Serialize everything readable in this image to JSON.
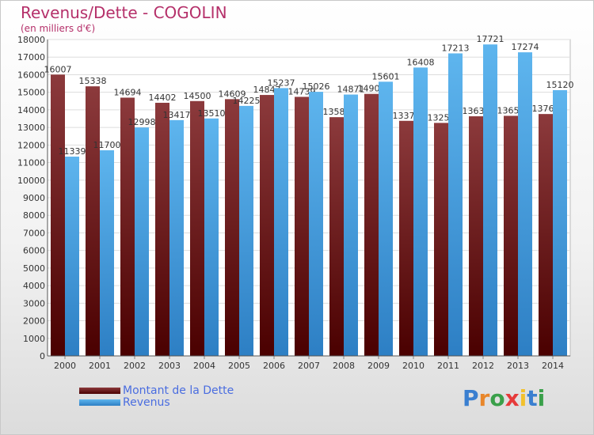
{
  "header": {
    "title": "Revenus/Dette - COGOLIN",
    "subtitle": "(en milliers d'€)"
  },
  "legend": {
    "dette_label": "Montant de la Dette",
    "revenus_label": "Revenus"
  },
  "logo": {
    "letters": [
      "P",
      "r",
      "o",
      "x",
      "i",
      "t",
      "i"
    ]
  },
  "colors": {
    "dette_top": "#8c3a3c",
    "dette_bottom": "#4a0000",
    "revenus_top": "#5eb5ee",
    "revenus_bottom": "#2d7fc4",
    "title": "#b5306a",
    "legend_text": "#4a6de0"
  },
  "chart_data": {
    "type": "bar",
    "categories": [
      "2000",
      "2001",
      "2002",
      "2003",
      "2004",
      "2005",
      "2006",
      "2007",
      "2008",
      "2009",
      "2010",
      "2011",
      "2012",
      "2013",
      "2014"
    ],
    "series": [
      {
        "name": "Montant de la Dette",
        "values": [
          16007,
          15338,
          14694,
          14402,
          14500,
          14609,
          14847,
          14739,
          13583,
          14907,
          13375,
          13257,
          13633,
          13659,
          13763
        ]
      },
      {
        "name": "Revenus",
        "values": [
          11339,
          11700,
          12998,
          13417,
          13510,
          14225,
          15237,
          15026,
          14871,
          15601,
          16408,
          17213,
          17721,
          17274,
          15120
        ]
      }
    ],
    "ylim": [
      0,
      18000
    ],
    "ytick_step": 1000,
    "grid": true,
    "legend_position": "bottom-left"
  }
}
